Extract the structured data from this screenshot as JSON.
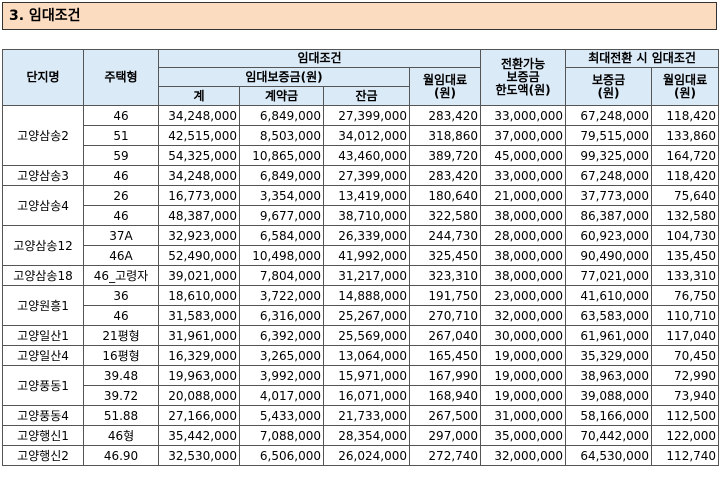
{
  "section": {
    "title": "3. 임대조건"
  },
  "headers": {
    "complex": "단지명",
    "type": "주택형",
    "rent_conditions": "임대조건",
    "deposit_group": "임대보증금(원)",
    "total": "계",
    "contract_fee": "계약금",
    "balance": "잔금",
    "monthly_rent": "월임대료\n(원)",
    "convertible": "전환가능\n보증금\n한도액(원)",
    "max_conversion": "최대전환 시 임대조건",
    "deposit": "보증금\n(원)",
    "monthly_rent2": "월임대료\n(원)"
  },
  "rows": [
    {
      "complex": "고양삼송2",
      "type": "46",
      "total": "34,248,000",
      "contract": "6,849,000",
      "balance": "27,399,000",
      "rent": "283,420",
      "conv": "33,000,000",
      "max_dep": "67,248,000",
      "max_rent": "118,420"
    },
    {
      "complex": "",
      "type": "51",
      "total": "42,515,000",
      "contract": "8,503,000",
      "balance": "34,012,000",
      "rent": "318,860",
      "conv": "37,000,000",
      "max_dep": "79,515,000",
      "max_rent": "133,860"
    },
    {
      "complex": "",
      "type": "59",
      "total": "54,325,000",
      "contract": "10,865,000",
      "balance": "43,460,000",
      "rent": "389,720",
      "conv": "45,000,000",
      "max_dep": "99,325,000",
      "max_rent": "164,720"
    },
    {
      "complex": "고양삼송3",
      "type": "46",
      "total": "34,248,000",
      "contract": "6,849,000",
      "balance": "27,399,000",
      "rent": "283,420",
      "conv": "33,000,000",
      "max_dep": "67,248,000",
      "max_rent": "118,420"
    },
    {
      "complex": "고양삼송4",
      "type": "26",
      "total": "16,773,000",
      "contract": "3,354,000",
      "balance": "13,419,000",
      "rent": "180,640",
      "conv": "21,000,000",
      "max_dep": "37,773,000",
      "max_rent": "75,640"
    },
    {
      "complex": "",
      "type": "46",
      "total": "48,387,000",
      "contract": "9,677,000",
      "balance": "38,710,000",
      "rent": "322,580",
      "conv": "38,000,000",
      "max_dep": "86,387,000",
      "max_rent": "132,580"
    },
    {
      "complex": "고양삼송12",
      "type": "37A",
      "total": "32,923,000",
      "contract": "6,584,000",
      "balance": "26,339,000",
      "rent": "244,730",
      "conv": "28,000,000",
      "max_dep": "60,923,000",
      "max_rent": "104,730"
    },
    {
      "complex": "",
      "type": "46A",
      "total": "52,490,000",
      "contract": "10,498,000",
      "balance": "41,992,000",
      "rent": "325,450",
      "conv": "38,000,000",
      "max_dep": "90,490,000",
      "max_rent": "135,450"
    },
    {
      "complex": "고양삼송18",
      "type": "46_고령자",
      "total": "39,021,000",
      "contract": "7,804,000",
      "balance": "31,217,000",
      "rent": "323,310",
      "conv": "38,000,000",
      "max_dep": "77,021,000",
      "max_rent": "133,310"
    },
    {
      "complex": "고양원흥1",
      "type": "36",
      "total": "18,610,000",
      "contract": "3,722,000",
      "balance": "14,888,000",
      "rent": "191,750",
      "conv": "23,000,000",
      "max_dep": "41,610,000",
      "max_rent": "76,750"
    },
    {
      "complex": "",
      "type": "46",
      "total": "31,583,000",
      "contract": "6,316,000",
      "balance": "25,267,000",
      "rent": "270,710",
      "conv": "32,000,000",
      "max_dep": "63,583,000",
      "max_rent": "110,710"
    },
    {
      "complex": "고양일산1",
      "type": "21평형",
      "total": "31,961,000",
      "contract": "6,392,000",
      "balance": "25,569,000",
      "rent": "267,040",
      "conv": "30,000,000",
      "max_dep": "61,961,000",
      "max_rent": "117,040"
    },
    {
      "complex": "고양일산4",
      "type": "16평형",
      "total": "16,329,000",
      "contract": "3,265,000",
      "balance": "13,064,000",
      "rent": "165,450",
      "conv": "19,000,000",
      "max_dep": "35,329,000",
      "max_rent": "70,450"
    },
    {
      "complex": "고양풍동1",
      "type": "39.48",
      "total": "19,963,000",
      "contract": "3,992,000",
      "balance": "15,971,000",
      "rent": "167,990",
      "conv": "19,000,000",
      "max_dep": "38,963,000",
      "max_rent": "72,990"
    },
    {
      "complex": "",
      "type": "39.72",
      "total": "20,088,000",
      "contract": "4,017,000",
      "balance": "16,071,000",
      "rent": "168,940",
      "conv": "19,000,000",
      "max_dep": "39,088,000",
      "max_rent": "73,940"
    },
    {
      "complex": "고양풍동4",
      "type": "51.88",
      "total": "27,166,000",
      "contract": "5,433,000",
      "balance": "21,733,000",
      "rent": "267,500",
      "conv": "31,000,000",
      "max_dep": "58,166,000",
      "max_rent": "112,500"
    },
    {
      "complex": "고양행신1",
      "type": "46형",
      "total": "35,442,000",
      "contract": "7,088,000",
      "balance": "28,354,000",
      "rent": "297,000",
      "conv": "35,000,000",
      "max_dep": "70,442,000",
      "max_rent": "122,000"
    },
    {
      "complex": "고양행신2",
      "type": "46.90",
      "total": "32,530,000",
      "contract": "6,506,000",
      "balance": "26,024,000",
      "rent": "272,740",
      "conv": "32,000,000",
      "max_dep": "64,530,000",
      "max_rent": "112,740"
    }
  ]
}
